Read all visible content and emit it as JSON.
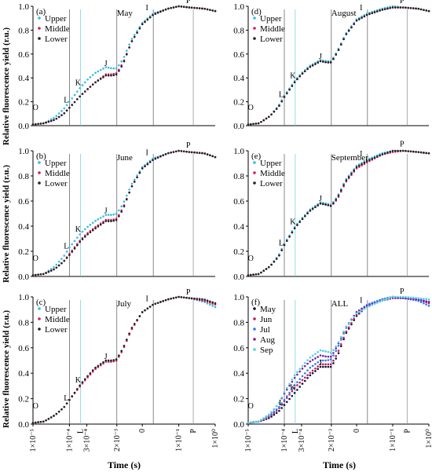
{
  "figure": {
    "ylabel": "Relative  fluorescence yield (r.u.)",
    "xlabel": "Time (s)",
    "y_ticks": [
      "0.0",
      "0.2",
      "0.4",
      "0.6",
      "0.8",
      "1.0"
    ],
    "x_ticks": [
      "1×10⁻⁵",
      "1×10⁻⁴",
      "3×10⁻⁴",
      "2×10⁻³",
      "0",
      "1×10⁻¹",
      "1×10⁰"
    ],
    "x_letters": [
      "L",
      "P"
    ],
    "colors": {
      "Upper": "#33bbe8",
      "Middle": "#d81b60",
      "Lower": "#222222",
      "May": "#111133",
      "Jun": "#c2185b",
      "Jul": "#2979ff",
      "Aug": "#7b1fa2",
      "Sep": "#4dd0e1"
    }
  },
  "chart_data": [
    {
      "type": "scatter",
      "panel_label": "(a)",
      "month_label": "May",
      "x_scale": "log",
      "xlim": [
        1e-05,
        1
      ],
      "ylim": [
        0,
        1
      ],
      "x": [
        1e-05,
        2e-05,
        4e-05,
        7e-05,
        0.0001,
        0.0002,
        0.0003,
        0.0005,
        0.001,
        0.0015,
        0.002,
        0.003,
        0.005,
        0.01,
        0.02,
        0.05,
        0.1,
        0.2,
        0.5,
        1
      ],
      "series": [
        {
          "name": "Upper",
          "values": [
            0.01,
            0.02,
            0.07,
            0.14,
            0.2,
            0.32,
            0.38,
            0.44,
            0.49,
            0.48,
            0.48,
            0.56,
            0.72,
            0.86,
            0.94,
            0.98,
            1.0,
            0.99,
            0.98,
            0.96
          ]
        },
        {
          "name": "Middle",
          "values": [
            0.01,
            0.02,
            0.05,
            0.1,
            0.15,
            0.25,
            0.3,
            0.36,
            0.43,
            0.43,
            0.44,
            0.53,
            0.7,
            0.85,
            0.93,
            0.98,
            1.0,
            0.99,
            0.98,
            0.96
          ]
        },
        {
          "name": "Lower",
          "values": [
            0.01,
            0.02,
            0.05,
            0.1,
            0.15,
            0.25,
            0.3,
            0.36,
            0.42,
            0.42,
            0.43,
            0.52,
            0.7,
            0.85,
            0.93,
            0.98,
            1.0,
            0.99,
            0.98,
            0.96
          ]
        }
      ],
      "annotations": [
        "O",
        "L",
        "K",
        "J",
        "I",
        "P"
      ]
    },
    {
      "type": "scatter",
      "panel_label": "(b)",
      "month_label": "June",
      "x_scale": "log",
      "xlim": [
        1e-05,
        1
      ],
      "ylim": [
        0,
        1
      ],
      "x": [
        1e-05,
        2e-05,
        4e-05,
        7e-05,
        0.0001,
        0.0002,
        0.0003,
        0.0005,
        0.001,
        0.0015,
        0.002,
        0.003,
        0.005,
        0.01,
        0.02,
        0.05,
        0.1,
        0.2,
        0.5,
        1
      ],
      "series": [
        {
          "name": "Upper",
          "values": [
            0.01,
            0.02,
            0.08,
            0.16,
            0.23,
            0.34,
            0.39,
            0.44,
            0.49,
            0.49,
            0.5,
            0.58,
            0.73,
            0.87,
            0.94,
            0.98,
            1.0,
            0.99,
            0.98,
            0.95
          ]
        },
        {
          "name": "Middle",
          "values": [
            0.01,
            0.02,
            0.06,
            0.12,
            0.18,
            0.29,
            0.34,
            0.39,
            0.45,
            0.45,
            0.46,
            0.55,
            0.71,
            0.86,
            0.93,
            0.98,
            1.0,
            0.99,
            0.98,
            0.95
          ]
        },
        {
          "name": "Lower",
          "values": [
            0.01,
            0.02,
            0.06,
            0.12,
            0.17,
            0.28,
            0.33,
            0.38,
            0.44,
            0.44,
            0.45,
            0.54,
            0.71,
            0.86,
            0.93,
            0.98,
            1.0,
            0.99,
            0.98,
            0.95
          ]
        }
      ],
      "annotations": [
        "O",
        "L",
        "K",
        "J",
        "I",
        "P"
      ]
    },
    {
      "type": "scatter",
      "panel_label": "(c)",
      "month_label": "July",
      "x_scale": "log",
      "xlim": [
        1e-05,
        1
      ],
      "ylim": [
        0,
        1
      ],
      "x": [
        1e-05,
        2e-05,
        4e-05,
        7e-05,
        0.0001,
        0.0002,
        0.0003,
        0.0005,
        0.001,
        0.0015,
        0.002,
        0.003,
        0.005,
        0.01,
        0.02,
        0.05,
        0.1,
        0.2,
        0.5,
        1
      ],
      "series": [
        {
          "name": "Upper",
          "values": [
            0.01,
            0.02,
            0.07,
            0.13,
            0.19,
            0.31,
            0.37,
            0.44,
            0.5,
            0.5,
            0.51,
            0.6,
            0.75,
            0.88,
            0.94,
            0.98,
            1.0,
            0.99,
            0.96,
            0.92
          ]
        },
        {
          "name": "Middle",
          "values": [
            0.01,
            0.02,
            0.07,
            0.13,
            0.19,
            0.3,
            0.36,
            0.43,
            0.49,
            0.49,
            0.5,
            0.59,
            0.74,
            0.88,
            0.94,
            0.98,
            1.0,
            0.99,
            0.97,
            0.94
          ]
        },
        {
          "name": "Lower",
          "values": [
            0.01,
            0.02,
            0.07,
            0.13,
            0.19,
            0.31,
            0.37,
            0.44,
            0.5,
            0.5,
            0.51,
            0.6,
            0.75,
            0.88,
            0.94,
            0.98,
            1.0,
            0.99,
            0.98,
            0.95
          ]
        }
      ],
      "annotations": [
        "O",
        "L",
        "K",
        "J",
        "I",
        "P"
      ]
    },
    {
      "type": "scatter",
      "panel_label": "(d)",
      "month_label": "August",
      "x_scale": "log",
      "xlim": [
        1e-05,
        1
      ],
      "ylim": [
        0,
        1
      ],
      "x": [
        1e-05,
        2e-05,
        4e-05,
        7e-05,
        0.0001,
        0.0002,
        0.0003,
        0.0005,
        0.001,
        0.0015,
        0.002,
        0.003,
        0.005,
        0.01,
        0.02,
        0.05,
        0.1,
        0.2,
        0.5,
        1
      ],
      "series": [
        {
          "name": "Upper",
          "values": [
            0.01,
            0.02,
            0.08,
            0.17,
            0.25,
            0.38,
            0.44,
            0.5,
            0.55,
            0.54,
            0.54,
            0.63,
            0.77,
            0.89,
            0.94,
            0.98,
            1.0,
            0.99,
            0.98,
            0.96
          ]
        },
        {
          "name": "Middle",
          "values": [
            0.01,
            0.02,
            0.08,
            0.16,
            0.24,
            0.37,
            0.43,
            0.49,
            0.54,
            0.53,
            0.53,
            0.62,
            0.76,
            0.88,
            0.93,
            0.97,
            0.99,
            0.99,
            0.98,
            0.96
          ]
        },
        {
          "name": "Lower",
          "values": [
            0.01,
            0.02,
            0.08,
            0.16,
            0.24,
            0.37,
            0.43,
            0.49,
            0.54,
            0.53,
            0.53,
            0.62,
            0.76,
            0.88,
            0.93,
            0.97,
            0.99,
            0.99,
            0.98,
            0.96
          ]
        }
      ],
      "annotations": [
        "O",
        "L",
        "K",
        "J",
        "I",
        "P"
      ]
    },
    {
      "type": "scatter",
      "panel_label": "(e)",
      "month_label": "September",
      "x_scale": "log",
      "xlim": [
        1e-05,
        1
      ],
      "ylim": [
        0,
        1
      ],
      "x": [
        1e-05,
        2e-05,
        4e-05,
        7e-05,
        0.0001,
        0.0002,
        0.0003,
        0.0005,
        0.001,
        0.0015,
        0.002,
        0.003,
        0.005,
        0.01,
        0.02,
        0.05,
        0.1,
        0.2,
        0.5,
        1
      ],
      "series": [
        {
          "name": "Upper",
          "values": [
            0.01,
            0.02,
            0.08,
            0.17,
            0.26,
            0.4,
            0.46,
            0.53,
            0.59,
            0.58,
            0.57,
            0.64,
            0.77,
            0.88,
            0.93,
            0.98,
            1.0,
            1.0,
            0.99,
            0.98
          ]
        },
        {
          "name": "Middle",
          "values": [
            0.01,
            0.02,
            0.08,
            0.16,
            0.25,
            0.39,
            0.45,
            0.52,
            0.58,
            0.57,
            0.56,
            0.62,
            0.75,
            0.86,
            0.91,
            0.97,
            0.99,
            1.0,
            0.99,
            0.98
          ]
        },
        {
          "name": "Lower",
          "values": [
            0.01,
            0.02,
            0.08,
            0.16,
            0.25,
            0.39,
            0.45,
            0.52,
            0.58,
            0.57,
            0.56,
            0.63,
            0.76,
            0.87,
            0.92,
            0.97,
            1.0,
            1.0,
            0.99,
            0.98
          ]
        }
      ],
      "annotations": [
        "O",
        "L",
        "K",
        "J",
        "I",
        "P"
      ]
    },
    {
      "type": "scatter",
      "panel_label": "(f)",
      "month_label": "ALL",
      "x_scale": "log",
      "xlim": [
        1e-05,
        1
      ],
      "ylim": [
        0,
        1
      ],
      "x": [
        1e-05,
        2e-05,
        4e-05,
        7e-05,
        0.0001,
        0.0002,
        0.0003,
        0.0005,
        0.001,
        0.0015,
        0.002,
        0.003,
        0.005,
        0.01,
        0.02,
        0.05,
        0.1,
        0.2,
        0.5,
        1
      ],
      "series": [
        {
          "name": "May",
          "values": [
            0.01,
            0.02,
            0.05,
            0.1,
            0.15,
            0.25,
            0.31,
            0.38,
            0.45,
            0.45,
            0.45,
            0.54,
            0.71,
            0.85,
            0.93,
            0.98,
            1.0,
            0.99,
            0.98,
            0.96
          ]
        },
        {
          "name": "Jun",
          "values": [
            0.01,
            0.02,
            0.06,
            0.12,
            0.18,
            0.29,
            0.34,
            0.4,
            0.47,
            0.47,
            0.47,
            0.56,
            0.72,
            0.86,
            0.93,
            0.98,
            1.0,
            0.99,
            0.98,
            0.95
          ]
        },
        {
          "name": "Jul",
          "values": [
            0.01,
            0.02,
            0.07,
            0.13,
            0.19,
            0.31,
            0.37,
            0.44,
            0.5,
            0.5,
            0.51,
            0.6,
            0.75,
            0.88,
            0.94,
            0.98,
            1.0,
            0.99,
            0.97,
            0.93
          ]
        },
        {
          "name": "Aug",
          "values": [
            0.01,
            0.02,
            0.08,
            0.16,
            0.24,
            0.37,
            0.43,
            0.49,
            0.54,
            0.53,
            0.53,
            0.62,
            0.76,
            0.88,
            0.93,
            0.97,
            0.99,
            0.99,
            0.98,
            0.96
          ]
        },
        {
          "name": "Sep",
          "values": [
            0.01,
            0.02,
            0.08,
            0.16,
            0.25,
            0.39,
            0.45,
            0.52,
            0.58,
            0.57,
            0.56,
            0.63,
            0.76,
            0.87,
            0.92,
            0.97,
            1.0,
            1.0,
            0.99,
            0.98
          ]
        }
      ],
      "annotations": [
        "O",
        "L",
        "K",
        "J",
        "I",
        "P"
      ]
    }
  ]
}
